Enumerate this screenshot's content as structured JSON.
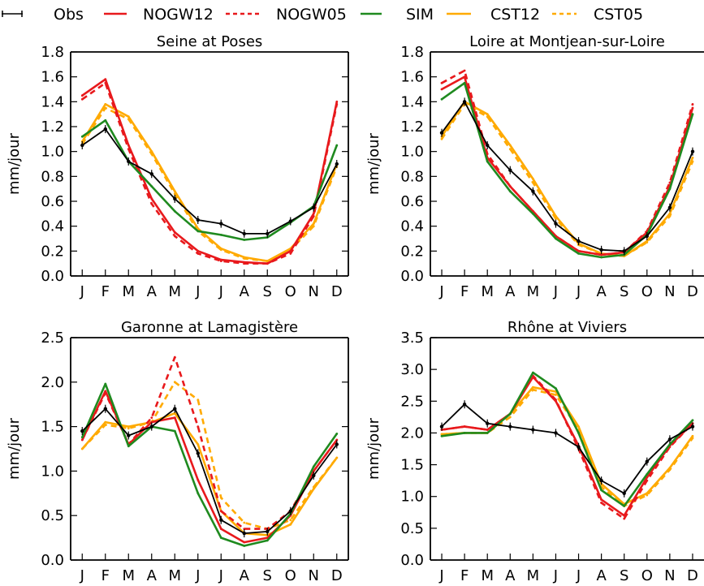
{
  "legend": {
    "placement": "top",
    "entries": [
      {
        "name": "Obs",
        "color": "#000000",
        "style": "solid-markers"
      },
      {
        "name": "NOGW12",
        "color": "#e8191c",
        "style": "solid"
      },
      {
        "name": "NOGW05",
        "color": "#e8191c",
        "style": "dashed"
      },
      {
        "name": "SIM",
        "color": "#1f8a1f",
        "style": "solid"
      },
      {
        "name": "CST12",
        "color": "#ffaa00",
        "style": "solid"
      },
      {
        "name": "CST05",
        "color": "#ffaa00",
        "style": "dashed"
      }
    ]
  },
  "chart_data": [
    {
      "type": "line",
      "title": "Seine at Poses",
      "ylabel": "mm/jour",
      "xlabel": "",
      "categories": [
        "J",
        "F",
        "M",
        "A",
        "M",
        "J",
        "J",
        "A",
        "S",
        "O",
        "N",
        "D"
      ],
      "ylim": [
        0,
        1.8
      ],
      "yticks": [
        "0.0",
        "0.2",
        "0.4",
        "0.6",
        "0.8",
        "1.0",
        "1.2",
        "1.4",
        "1.6",
        "1.8"
      ],
      "series": [
        {
          "name": "Obs",
          "values": [
            1.05,
            1.18,
            0.92,
            0.82,
            0.62,
            0.45,
            0.42,
            0.34,
            0.34,
            0.44,
            0.55,
            0.9
          ]
        },
        {
          "name": "NOGW12",
          "values": [
            1.45,
            1.58,
            1.05,
            0.62,
            0.35,
            0.2,
            0.13,
            0.11,
            0.1,
            0.2,
            0.5,
            1.4
          ]
        },
        {
          "name": "NOGW05",
          "values": [
            1.42,
            1.55,
            1.02,
            0.58,
            0.32,
            0.18,
            0.12,
            0.1,
            0.1,
            0.18,
            0.48,
            1.38
          ]
        },
        {
          "name": "SIM",
          "values": [
            1.12,
            1.25,
            0.92,
            0.72,
            0.52,
            0.36,
            0.33,
            0.29,
            0.31,
            0.43,
            0.56,
            1.05
          ]
        },
        {
          "name": "CST12",
          "values": [
            1.08,
            1.38,
            1.28,
            1.0,
            0.68,
            0.38,
            0.22,
            0.15,
            0.12,
            0.22,
            0.42,
            0.9
          ]
        },
        {
          "name": "CST05",
          "values": [
            1.06,
            1.35,
            1.26,
            0.98,
            0.66,
            0.36,
            0.21,
            0.14,
            0.12,
            0.21,
            0.4,
            0.88
          ]
        }
      ]
    },
    {
      "type": "line",
      "title": "Loire at Montjean-sur-Loire",
      "ylabel": "mm/jour",
      "xlabel": "",
      "categories": [
        "J",
        "F",
        "M",
        "A",
        "M",
        "J",
        "J",
        "A",
        "S",
        "O",
        "N",
        "D"
      ],
      "ylim": [
        0,
        1.8
      ],
      "yticks": [
        "0.0",
        "0.2",
        "0.4",
        "0.6",
        "0.8",
        "1.0",
        "1.2",
        "1.4",
        "1.6",
        "1.8"
      ],
      "series": [
        {
          "name": "Obs",
          "values": [
            1.15,
            1.4,
            1.05,
            0.85,
            0.68,
            0.42,
            0.28,
            0.21,
            0.2,
            0.32,
            0.55,
            1.0
          ]
        },
        {
          "name": "NOGW12",
          "values": [
            1.5,
            1.6,
            0.95,
            0.72,
            0.52,
            0.32,
            0.2,
            0.17,
            0.19,
            0.35,
            0.72,
            1.35
          ]
        },
        {
          "name": "NOGW05",
          "values": [
            1.55,
            1.65,
            0.98,
            0.72,
            0.52,
            0.32,
            0.2,
            0.17,
            0.19,
            0.36,
            0.75,
            1.38
          ]
        },
        {
          "name": "SIM",
          "values": [
            1.42,
            1.55,
            0.92,
            0.68,
            0.5,
            0.3,
            0.18,
            0.15,
            0.17,
            0.33,
            0.7,
            1.3
          ]
        },
        {
          "name": "CST12",
          "values": [
            1.12,
            1.4,
            1.3,
            1.05,
            0.78,
            0.48,
            0.26,
            0.18,
            0.16,
            0.28,
            0.5,
            0.95
          ]
        },
        {
          "name": "CST05",
          "values": [
            1.1,
            1.38,
            1.28,
            1.02,
            0.75,
            0.46,
            0.25,
            0.18,
            0.16,
            0.27,
            0.48,
            0.92
          ]
        }
      ]
    },
    {
      "type": "line",
      "title": "Garonne at Lamagistère",
      "ylabel": "mm/jour",
      "xlabel": "",
      "categories": [
        "J",
        "F",
        "M",
        "A",
        "M",
        "J",
        "J",
        "A",
        "S",
        "O",
        "N",
        "D"
      ],
      "ylim": [
        0,
        2.5
      ],
      "yticks": [
        "0.0",
        "0.5",
        "1.0",
        "1.5",
        "2.0",
        "2.5"
      ],
      "series": [
        {
          "name": "Obs",
          "values": [
            1.45,
            1.7,
            1.4,
            1.5,
            1.7,
            1.2,
            0.45,
            0.3,
            0.32,
            0.55,
            0.95,
            1.3
          ]
        },
        {
          "name": "NOGW12",
          "values": [
            1.35,
            1.9,
            1.3,
            1.55,
            1.6,
            0.9,
            0.35,
            0.2,
            0.25,
            0.5,
            1.0,
            1.35
          ]
        },
        {
          "name": "NOGW05",
          "values": [
            1.35,
            1.88,
            1.3,
            1.6,
            2.28,
            1.5,
            0.55,
            0.35,
            0.35,
            0.55,
            1.0,
            1.35
          ]
        },
        {
          "name": "SIM",
          "values": [
            1.38,
            1.98,
            1.28,
            1.5,
            1.45,
            0.75,
            0.25,
            0.16,
            0.22,
            0.52,
            1.05,
            1.42
          ]
        },
        {
          "name": "CST12",
          "values": [
            1.25,
            1.55,
            1.5,
            1.55,
            1.65,
            1.3,
            0.55,
            0.3,
            0.28,
            0.4,
            0.8,
            1.15
          ]
        },
        {
          "name": "CST05",
          "values": [
            1.25,
            1.52,
            1.48,
            1.55,
            2.0,
            1.8,
            0.7,
            0.42,
            0.35,
            0.45,
            0.82,
            1.15
          ]
        }
      ]
    },
    {
      "type": "line",
      "title": "Rhône at Viviers",
      "ylabel": "mm/jour",
      "xlabel": "",
      "categories": [
        "J",
        "F",
        "M",
        "A",
        "M",
        "J",
        "J",
        "A",
        "S",
        "O",
        "N",
        "D"
      ],
      "ylim": [
        0,
        3.5
      ],
      "yticks": [
        "0.0",
        "0.5",
        "1.0",
        "1.5",
        "2.0",
        "2.5",
        "3.0",
        "3.5"
      ],
      "series": [
        {
          "name": "Obs",
          "values": [
            2.1,
            2.45,
            2.15,
            2.1,
            2.05,
            2.0,
            1.78,
            1.25,
            1.05,
            1.55,
            1.9,
            2.1
          ]
        },
        {
          "name": "NOGW12",
          "values": [
            2.05,
            2.1,
            2.05,
            2.3,
            2.88,
            2.5,
            1.8,
            0.95,
            0.7,
            1.3,
            1.8,
            2.15
          ]
        },
        {
          "name": "NOGW05",
          "values": [
            2.05,
            2.1,
            2.05,
            2.3,
            2.9,
            2.52,
            1.75,
            0.9,
            0.65,
            1.25,
            1.78,
            2.15
          ]
        },
        {
          "name": "SIM",
          "values": [
            1.95,
            2.0,
            2.0,
            2.3,
            2.95,
            2.7,
            2.0,
            1.1,
            0.85,
            1.35,
            1.82,
            2.2
          ]
        },
        {
          "name": "CST12",
          "values": [
            1.98,
            2.0,
            2.0,
            2.3,
            2.72,
            2.65,
            2.1,
            1.2,
            0.88,
            1.05,
            1.45,
            1.95
          ]
        },
        {
          "name": "CST05",
          "values": [
            1.98,
            2.0,
            2.0,
            2.25,
            2.68,
            2.6,
            2.05,
            1.15,
            0.85,
            1.02,
            1.42,
            1.92
          ]
        }
      ]
    }
  ]
}
